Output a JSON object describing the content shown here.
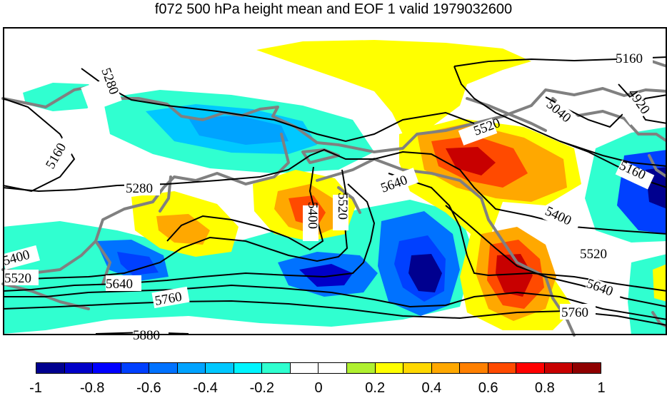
{
  "title": "f072 500 hPa height mean and EOF 1 valid 1979032600",
  "contour_labels": [
    "5160",
    "5040",
    "4920",
    "5280",
    "5160",
    "5160",
    "5280",
    "5400",
    "5520",
    "5640",
    "5400",
    "5400",
    "5520",
    "5520",
    "5640",
    "5760",
    "5880",
    "5520",
    "5640",
    "5760"
  ],
  "colorbar": {
    "colors": [
      "#00008f",
      "#0000c8",
      "#0000ff",
      "#0040ff",
      "#0072ff",
      "#00a3ff",
      "#00c8ff",
      "#00f5ff",
      "#30ffd0",
      "#ffffff",
      "#ffffff",
      "#b0f030",
      "#ffff00",
      "#ffd800",
      "#ffa800",
      "#ff8000",
      "#ff4a00",
      "#ff0000",
      "#c80000",
      "#8f0000"
    ],
    "ticks": [
      "-1",
      "-0.8",
      "-0.6",
      "-0.4",
      "-0.2",
      "0",
      "0.2",
      "0.4",
      "0.6",
      "0.8",
      "1"
    ]
  },
  "chart_data": {
    "type": "heatmap",
    "title": "f072 500 hPa height mean and EOF 1 valid 1979032600",
    "color_range": [
      -1,
      1
    ],
    "contour_values": [
      4920,
      5040,
      5160,
      5280,
      5400,
      5520,
      5640,
      5760,
      5880
    ]
  }
}
